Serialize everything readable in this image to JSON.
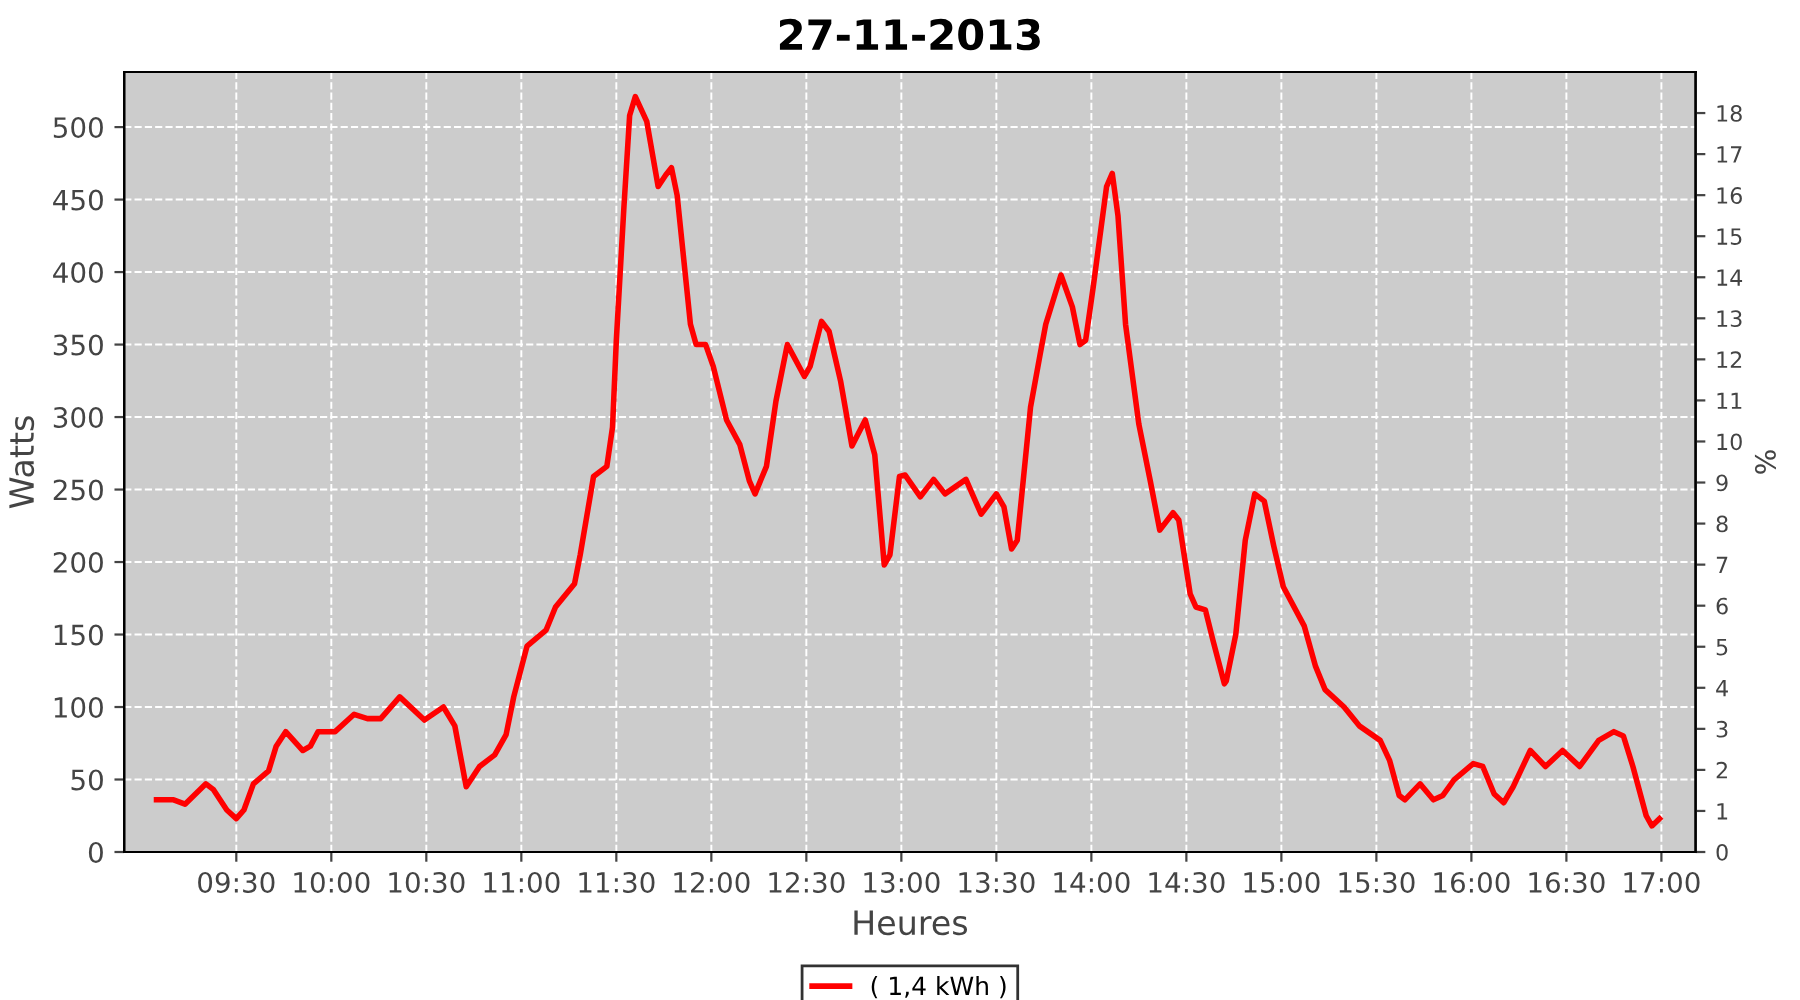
{
  "chart_data": {
    "type": "line",
    "title": "27-11-2013",
    "xlabel": "Heures",
    "ylabel": "Watts",
    "y2label": "%",
    "xlim": [
      8.91,
      17.18
    ],
    "xticks": [
      {
        "value": 9.5,
        "label": "09:30"
      },
      {
        "value": 10,
        "label": "10:00"
      },
      {
        "value": 10.5,
        "label": "10:30"
      },
      {
        "value": 11,
        "label": "11:00"
      },
      {
        "value": 11.5,
        "label": "11:30"
      },
      {
        "value": 12,
        "label": "12:00"
      },
      {
        "value": 12.5,
        "label": "12:30"
      },
      {
        "value": 13,
        "label": "13:00"
      },
      {
        "value": 13.5,
        "label": "13:30"
      },
      {
        "value": 14,
        "label": "14:00"
      },
      {
        "value": 14.5,
        "label": "14:30"
      },
      {
        "value": 15,
        "label": "15:00"
      },
      {
        "value": 15.5,
        "label": "15:30"
      },
      {
        "value": 16,
        "label": "16:00"
      },
      {
        "value": 16.5,
        "label": "16:30"
      },
      {
        "value": 17,
        "label": "17:00"
      }
    ],
    "ylim": [
      0,
      538
    ],
    "yticks": [
      0,
      50,
      100,
      150,
      200,
      250,
      300,
      350,
      400,
      450,
      500
    ],
    "y2lim": [
      0,
      19
    ],
    "y2ticks": [
      0,
      1,
      2,
      3,
      4,
      5,
      6,
      7,
      8,
      9,
      10,
      11,
      12,
      13,
      14,
      15,
      16,
      17,
      18
    ],
    "grid": true,
    "legend": "bottom",
    "marker": "none",
    "line_style": "solid",
    "series": [
      {
        "name": "( 1,4 kWh )",
        "color": "#ff0000",
        "x": [
          9.08,
          9.17,
          9.23,
          9.34,
          9.38,
          9.45,
          9.5,
          9.54,
          9.59,
          9.67,
          9.71,
          9.76,
          9.85,
          9.89,
          9.93,
          10.02,
          10.12,
          10.19,
          10.26,
          10.36,
          10.49,
          10.59,
          10.65,
          10.71,
          10.78,
          10.86,
          10.92,
          10.96,
          11.03,
          11.13,
          11.18,
          11.28,
          11.31,
          11.38,
          11.45,
          11.48,
          11.5,
          11.54,
          11.57,
          11.6,
          11.66,
          11.72,
          11.76,
          11.79,
          11.82,
          11.89,
          11.92,
          11.97,
          12.01,
          12.08,
          12.15,
          12.2,
          12.23,
          12.29,
          12.34,
          12.4,
          12.49,
          12.52,
          12.58,
          12.62,
          12.68,
          12.74,
          12.81,
          12.86,
          12.91,
          12.94,
          12.99,
          13.02,
          13.1,
          13.17,
          13.23,
          13.34,
          13.42,
          13.5,
          13.54,
          13.58,
          13.61,
          13.68,
          13.73,
          13.76,
          13.84,
          13.9,
          13.94,
          13.97,
          14.01,
          14.08,
          14.11,
          14.14,
          14.18,
          14.25,
          14.31,
          14.36,
          14.43,
          14.46,
          14.52,
          14.55,
          14.6,
          14.64,
          14.7,
          14.71,
          14.76,
          14.81,
          14.86,
          14.91,
          14.96,
          15.01,
          15.12,
          15.18,
          15.23,
          15.33,
          15.41,
          15.52,
          15.57,
          15.62,
          15.65,
          15.73,
          15.8,
          15.85,
          15.91,
          16.01,
          16.06,
          16.12,
          16.17,
          16.22,
          16.31,
          16.39,
          16.48,
          16.57,
          16.67,
          16.75,
          16.8,
          16.85,
          16.92,
          16.95,
          16.99
        ],
        "values": [
          36,
          36,
          33,
          47,
          43,
          29,
          23,
          29,
          47,
          56,
          73,
          83,
          70,
          73,
          83,
          83,
          95,
          92,
          92,
          107,
          91,
          100,
          87,
          45,
          59,
          67,
          81,
          107,
          142,
          153,
          169,
          185,
          205,
          259,
          266,
          293,
          353,
          445,
          508,
          521,
          504,
          459,
          467,
          472,
          453,
          364,
          350,
          350,
          335,
          298,
          281,
          256,
          247,
          266,
          311,
          350,
          328,
          335,
          366,
          359,
          325,
          280,
          298,
          274,
          198,
          205,
          259,
          260,
          245,
          257,
          247,
          257,
          233,
          247,
          238,
          209,
          215,
          307,
          343,
          364,
          398,
          376,
          350,
          353,
          390,
          459,
          468,
          439,
          364,
          295,
          256,
          222,
          234,
          229,
          178,
          169,
          167,
          146,
          116,
          118,
          150,
          215,
          247,
          242,
          211,
          183,
          156,
          128,
          112,
          100,
          87,
          77,
          63,
          39,
          36,
          47,
          36,
          39,
          50,
          61,
          59,
          40,
          34,
          45,
          70,
          59,
          70,
          59,
          77,
          83,
          80,
          59,
          25,
          18,
          23
        ]
      }
    ]
  }
}
